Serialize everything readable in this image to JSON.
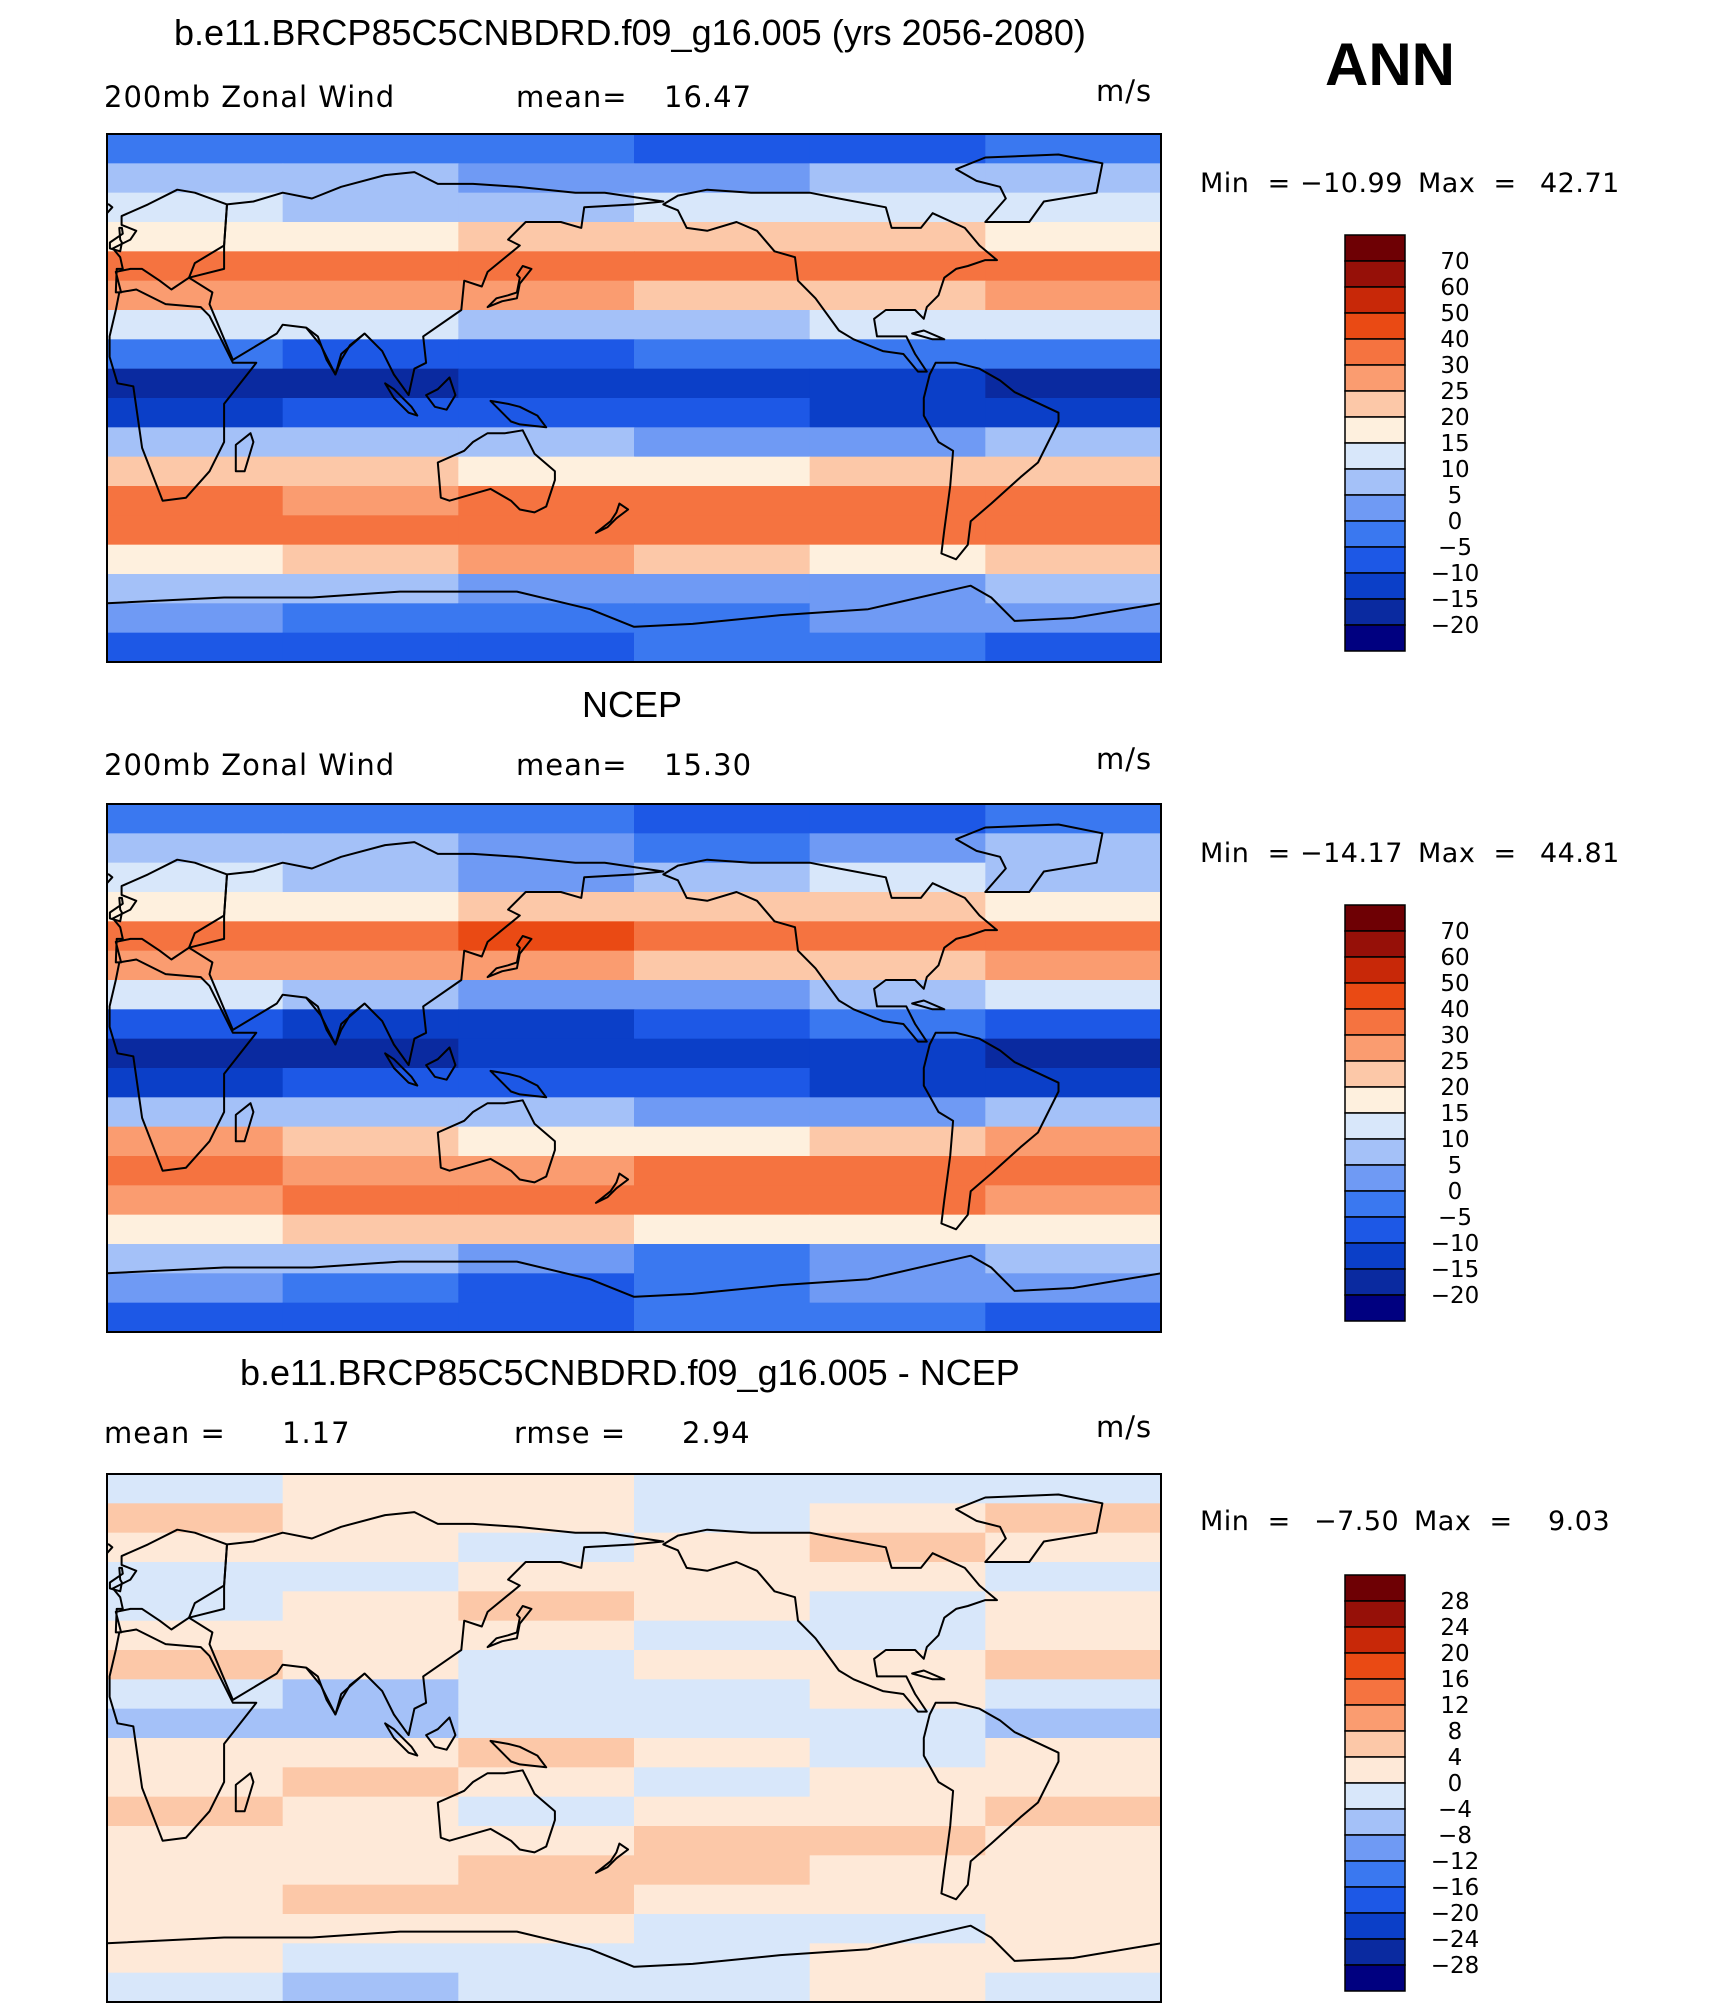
{
  "header": {
    "season": "ANN",
    "units": "m/s"
  },
  "colors": {
    "wind_levels": [
      "#000080",
      "#0a2aa0",
      "#0b3fc8",
      "#1d58e6",
      "#3a78f0",
      "#6f9af4",
      "#a4c1f8",
      "#d8e7fa",
      "#fef0de",
      "#fcc8a8",
      "#fa9c70",
      "#f57340",
      "#ea4a14",
      "#c82808",
      "#961008",
      "#6e0004"
    ],
    "diff_levels": [
      "#000080",
      "#0a2aa0",
      "#0b3fc8",
      "#1d58e6",
      "#3a78f0",
      "#6f9af4",
      "#a4c1f8",
      "#d8e7fa",
      "#fee9d8",
      "#fcc8a8",
      "#fa9c70",
      "#f57340",
      "#ea4a14",
      "#c82808",
      "#961008",
      "#6e0004"
    ]
  },
  "chart_data": [
    {
      "type": "heatmap",
      "name": "model",
      "title": "b.e11.BRCP85C5CNBDRD.f09_g16.005 (yrs 2056-2080)",
      "field_label": "200mb Zonal Wind",
      "mean_label": "mean=",
      "mean": "16.47",
      "units": "m/s",
      "min_label": "Min  =",
      "min": "−10.99",
      "max_label": "Max  =",
      "max": "42.71",
      "levels": [
        "70",
        "60",
        "50",
        "40",
        "30",
        "25",
        "20",
        "15",
        "10",
        "5",
        "0",
        "−5",
        "−10",
        "−15",
        "−20"
      ],
      "profile": [
        -5,
        5,
        10,
        20,
        35,
        25,
        10,
        -5,
        -15,
        -10,
        5,
        20,
        33,
        35,
        22,
        5,
        0,
        -5
      ]
    },
    {
      "type": "heatmap",
      "name": "obs",
      "title": "NCEP",
      "field_label": "200mb Zonal Wind",
      "mean_label": "mean=",
      "mean": "15.30",
      "units": "m/s",
      "min_label": "Min  =",
      "min": "−14.17",
      "max_label": "Max  =",
      "max": "44.81",
      "levels": [
        "70",
        "60",
        "50",
        "40",
        "30",
        "25",
        "20",
        "15",
        "10",
        "5",
        "0",
        "−5",
        "−10",
        "−15",
        "−20"
      ],
      "profile": [
        -5,
        3,
        8,
        20,
        38,
        25,
        8,
        -8,
        -15,
        -10,
        5,
        22,
        32,
        33,
        20,
        3,
        -2,
        -5
      ]
    },
    {
      "type": "heatmap",
      "name": "diff",
      "title": "b.e11.BRCP85C5CNBDRD.f09_g16.005 - NCEP",
      "mean_label": "mean =",
      "mean": "1.17",
      "rmse_label": "rmse =",
      "rmse": "2.94",
      "units": "m/s",
      "min_label": "Min  =",
      "min": "−7.50",
      "max_label": "Max  =",
      "max": "9.03",
      "levels": [
        "28",
        "24",
        "20",
        "16",
        "12",
        "8",
        "4",
        "0",
        "−4",
        "−8",
        "−12",
        "−16",
        "−20",
        "−24",
        "−28"
      ],
      "profile": [
        -1,
        2,
        2,
        1,
        2,
        1,
        2,
        -2,
        -3,
        2,
        2,
        2,
        3,
        4,
        4,
        1,
        -1,
        -2
      ]
    }
  ]
}
